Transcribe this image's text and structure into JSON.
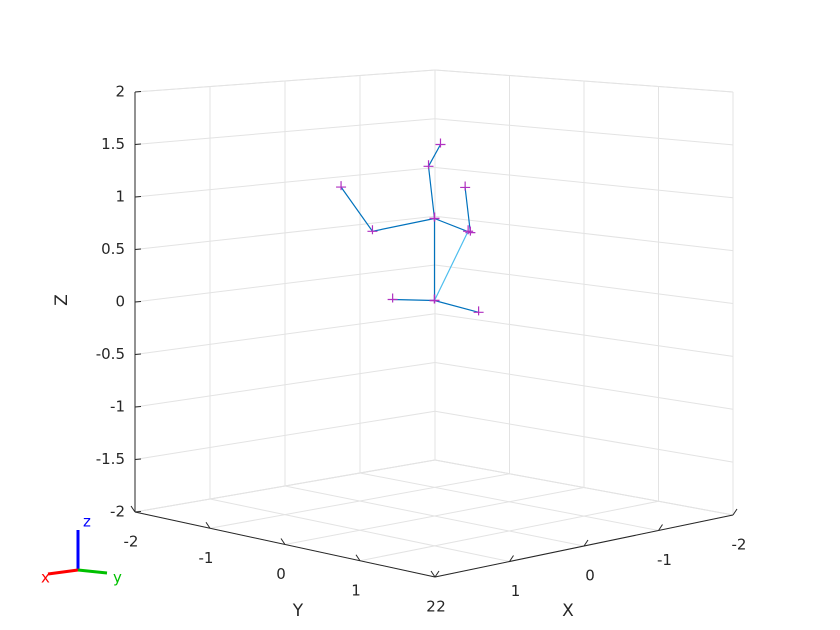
{
  "chart_data": {
    "type": "line3d",
    "xlabel": "X",
    "ylabel": "Y",
    "zlabel": "Z",
    "xlim": [
      -2,
      2
    ],
    "ylim": [
      -2,
      2
    ],
    "zlim": [
      -2,
      2
    ],
    "xticks": [
      -2,
      -1,
      0,
      1,
      2
    ],
    "yticks": [
      -2,
      -1,
      0,
      1,
      2
    ],
    "zticks": [
      -2,
      -1.5,
      -1,
      -0.5,
      0,
      0.5,
      1,
      1.5,
      2
    ],
    "grid": true,
    "marker_color": "#b030c0",
    "series": [
      {
        "color": "#0072bd",
        "x": [
          0,
          0,
          0
        ],
        "y": [
          -0.56,
          0,
          0.59
        ],
        "z": [
          0,
          0.05,
          0
        ]
      },
      {
        "color": "#0072bd",
        "x": [
          0,
          0,
          0,
          0
        ],
        "y": [
          0,
          0,
          -0.08,
          0.08
        ],
        "z": [
          0.05,
          0.83,
          1.32,
          1.54
        ]
      },
      {
        "color": "#0072bd",
        "x": [
          0,
          0,
          0
        ],
        "y": [
          0,
          -0.83,
          -1.25
        ],
        "z": [
          0.83,
          0.63,
          1.02
        ]
      },
      {
        "color": "#0072bd",
        "x": [
          0,
          0,
          0
        ],
        "y": [
          0,
          0.48,
          0.41
        ],
        "z": [
          0.83,
          0.74,
          1.16
        ]
      },
      {
        "color": "#4dbeee",
        "x": [
          0,
          0
        ],
        "y": [
          0,
          0.45
        ],
        "z": [
          0.05,
          0.75
        ]
      }
    ],
    "triad_labels": {
      "x": "x",
      "y": "y",
      "z": "z"
    }
  }
}
